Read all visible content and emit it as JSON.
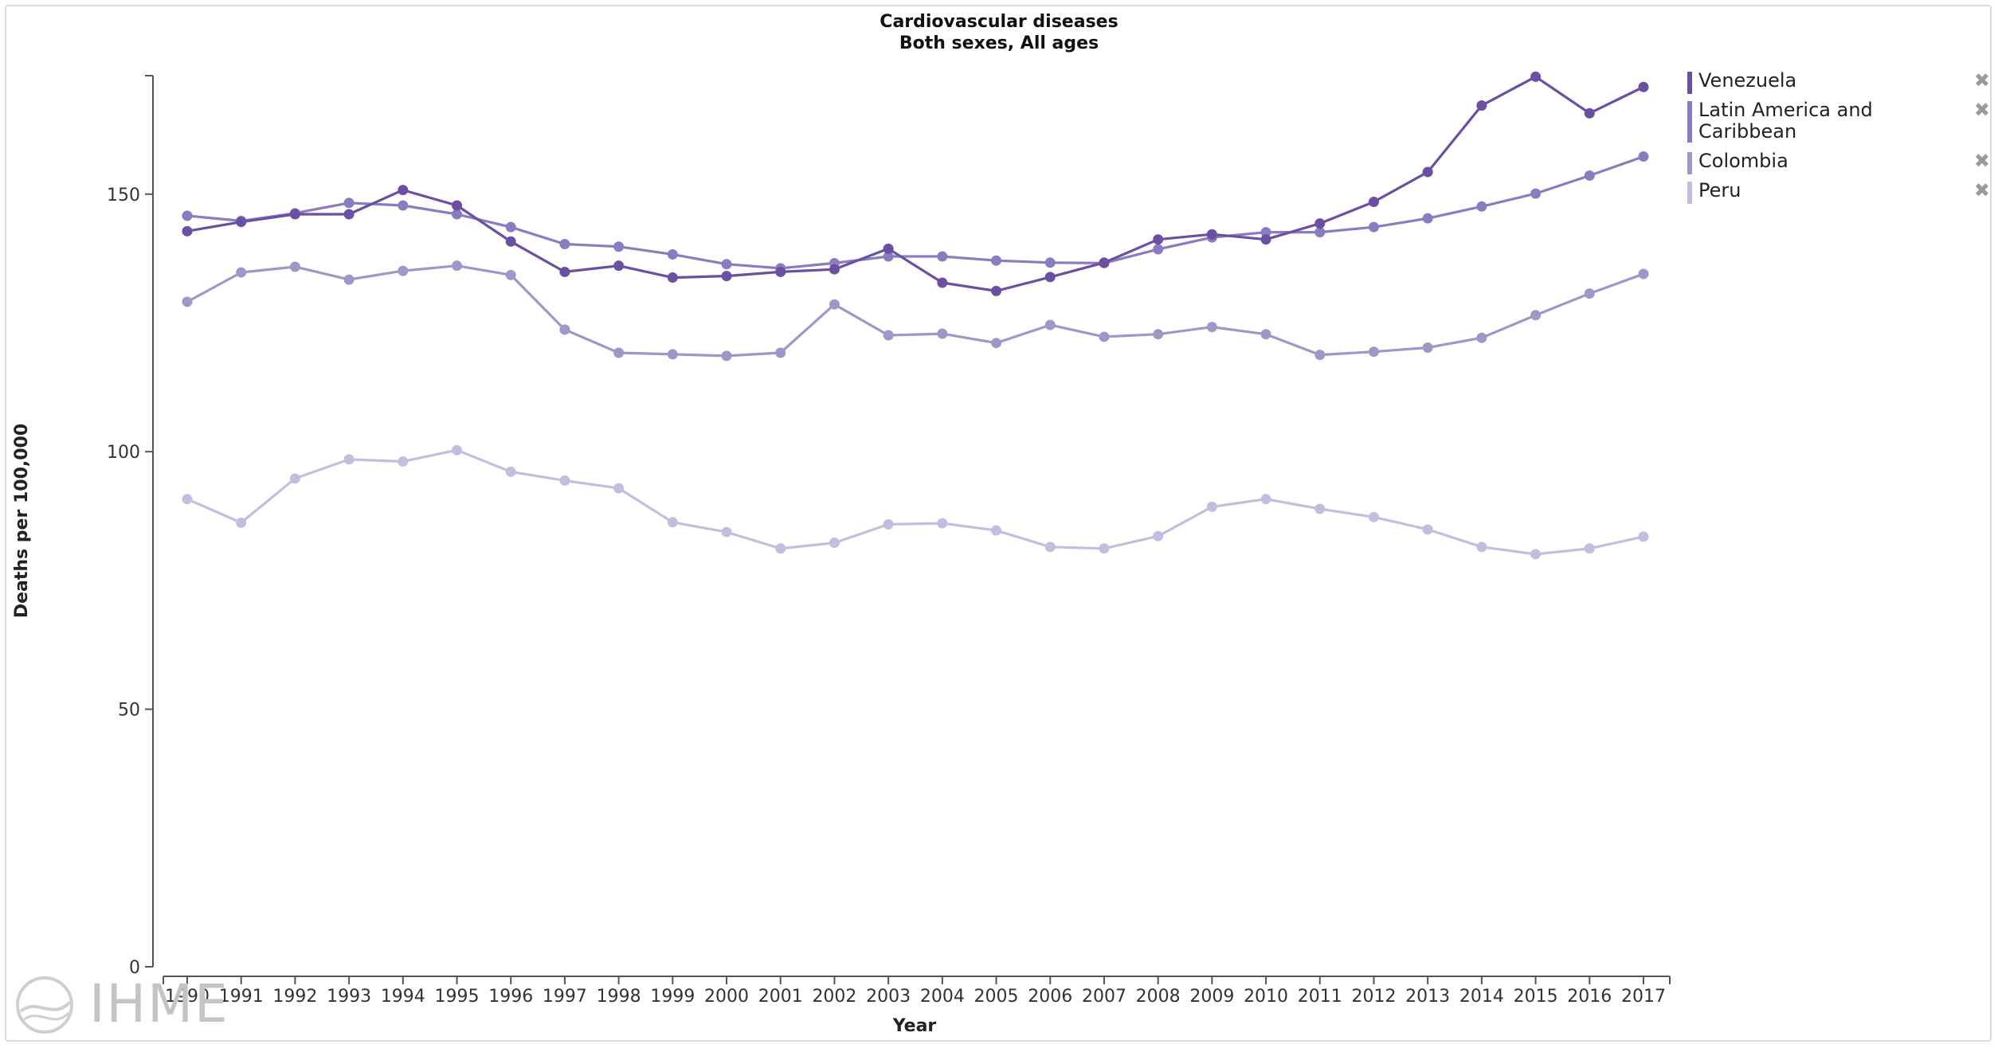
{
  "chart_data": {
    "type": "line",
    "title": "Cardiovascular diseases",
    "subtitle": "Both sexes, All ages",
    "xlabel": "Year",
    "ylabel": "Deaths per 100,000",
    "ylim": [
      0,
      173
    ],
    "yticks": [
      0,
      50,
      100,
      150
    ],
    "x": [
      1990,
      1991,
      1992,
      1993,
      1994,
      1995,
      1996,
      1997,
      1998,
      1999,
      2000,
      2001,
      2002,
      2003,
      2004,
      2005,
      2006,
      2007,
      2008,
      2009,
      2010,
      2011,
      2012,
      2013,
      2014,
      2015,
      2016,
      2017
    ],
    "grid": false,
    "legend_position": "top-right",
    "series": [
      {
        "name": "Venezuela",
        "color": "#6a4fa3",
        "values": [
          142.8,
          144.6,
          146.1,
          146.1,
          150.8,
          147.8,
          140.8,
          134.9,
          136.1,
          133.8,
          134.1,
          134.9,
          135.4,
          139.4,
          132.8,
          131.2,
          133.9,
          136.7,
          141.2,
          142.2,
          141.2,
          144.3,
          148.5,
          154.3,
          167.2,
          172.8,
          165.7,
          170.8
        ]
      },
      {
        "name": "Latin America and Caribbean",
        "color": "#8a7cc0",
        "values": [
          145.8,
          144.8,
          146.3,
          148.3,
          147.8,
          146.1,
          143.6,
          140.3,
          139.8,
          138.3,
          136.4,
          135.6,
          136.6,
          137.9,
          137.9,
          137.1,
          136.7,
          136.6,
          139.3,
          141.6,
          142.6,
          142.6,
          143.6,
          145.3,
          147.6,
          150.1,
          153.6,
          157.3
        ]
      },
      {
        "name": "Colombia",
        "color": "#9e98c8",
        "values": [
          129.1,
          134.8,
          135.9,
          133.4,
          135.1,
          136.1,
          134.3,
          123.7,
          119.2,
          118.9,
          118.6,
          119.2,
          128.6,
          122.6,
          122.9,
          121.1,
          124.6,
          122.3,
          122.8,
          124.2,
          122.8,
          118.8,
          119.4,
          120.2,
          122.1,
          126.5,
          130.7,
          134.5
        ]
      },
      {
        "name": "Peru",
        "color": "#c3bedf",
        "values": [
          90.8,
          86.2,
          94.8,
          98.5,
          98.1,
          100.3,
          96.1,
          94.4,
          92.9,
          86.3,
          84.4,
          81.2,
          82.3,
          85.9,
          86.1,
          84.7,
          81.5,
          81.2,
          83.6,
          89.3,
          90.8,
          88.9,
          87.3,
          84.9,
          81.5,
          80.1,
          81.2,
          83.5
        ]
      }
    ]
  },
  "legend": {
    "remove_glyph": "✖"
  },
  "logo": {
    "text": "IHME"
  }
}
